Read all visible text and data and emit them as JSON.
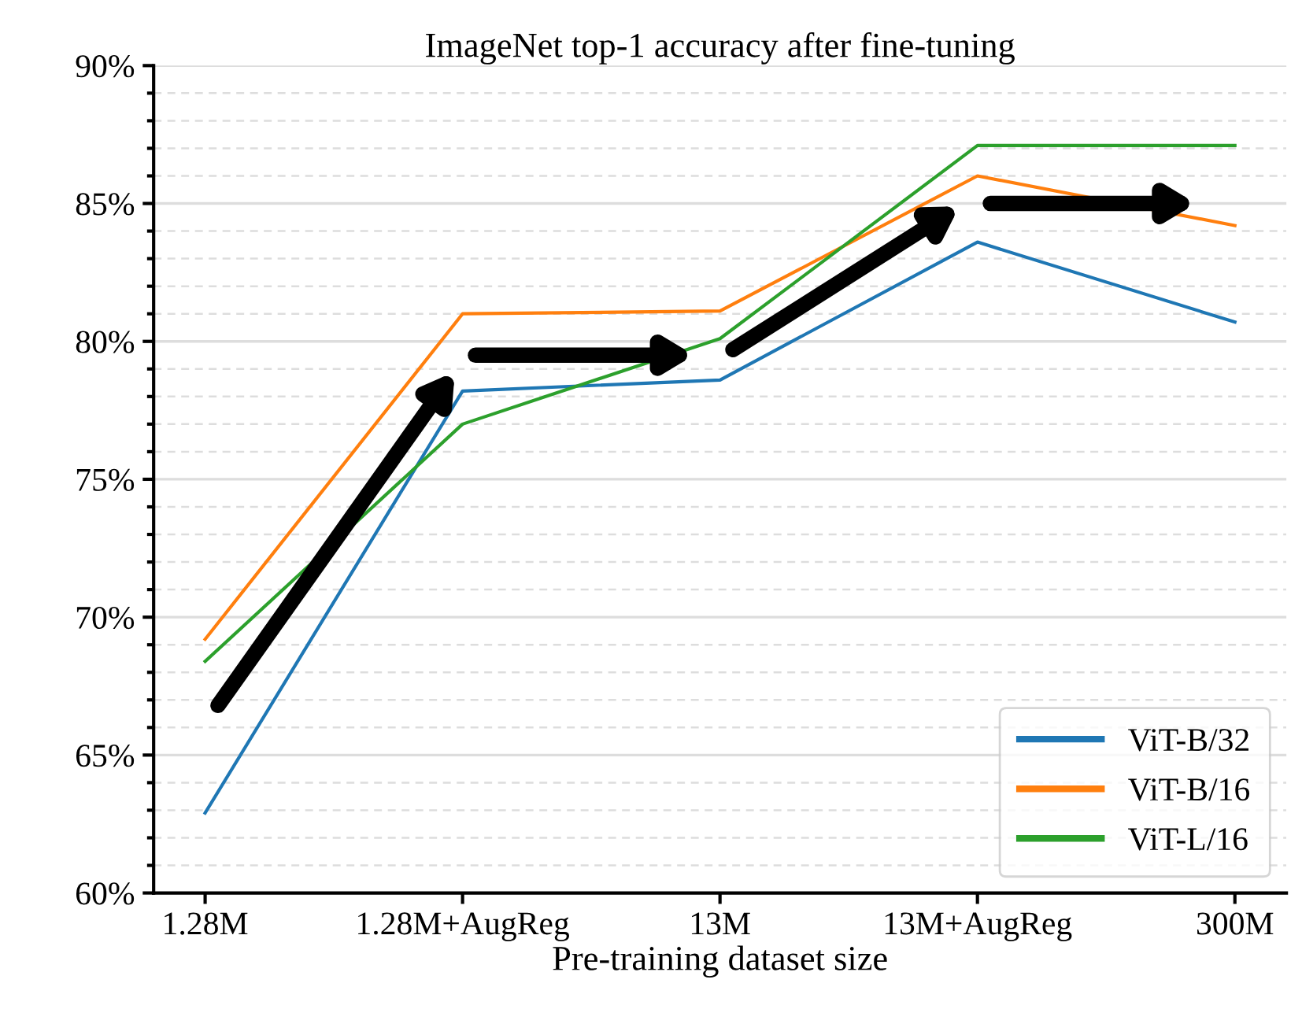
{
  "chart_data": {
    "type": "line",
    "title": "ImageNet top-1 accuracy after fine-tuning",
    "xlabel": "Pre-training dataset size",
    "categories": [
      "1.28M",
      "1.28M+AugReg",
      "13M",
      "13M+AugReg",
      "300M"
    ],
    "series": [
      {
        "name": "ViT-B/32",
        "color": "#1f77b4",
        "values": [
          62.9,
          78.2,
          78.6,
          83.6,
          80.7
        ]
      },
      {
        "name": "ViT-B/16",
        "color": "#ff7f0e",
        "values": [
          69.2,
          81.0,
          81.1,
          86.0,
          84.2
        ]
      },
      {
        "name": "ViT-L/16",
        "color": "#2ca02c",
        "values": [
          68.4,
          77.0,
          80.1,
          87.1,
          87.1
        ]
      }
    ],
    "ylim": [
      60,
      90
    ],
    "yticks": [
      {
        "value": 60,
        "label": "60%"
      },
      {
        "value": 65,
        "label": "65%"
      },
      {
        "value": 70,
        "label": "70%"
      },
      {
        "value": 75,
        "label": "75%"
      },
      {
        "value": 80,
        "label": "80%"
      },
      {
        "value": 85,
        "label": "85%"
      },
      {
        "value": 90,
        "label": "90%"
      }
    ],
    "grid": "y",
    "legend": "bottom right",
    "marker": "none",
    "line_style": "solid"
  }
}
